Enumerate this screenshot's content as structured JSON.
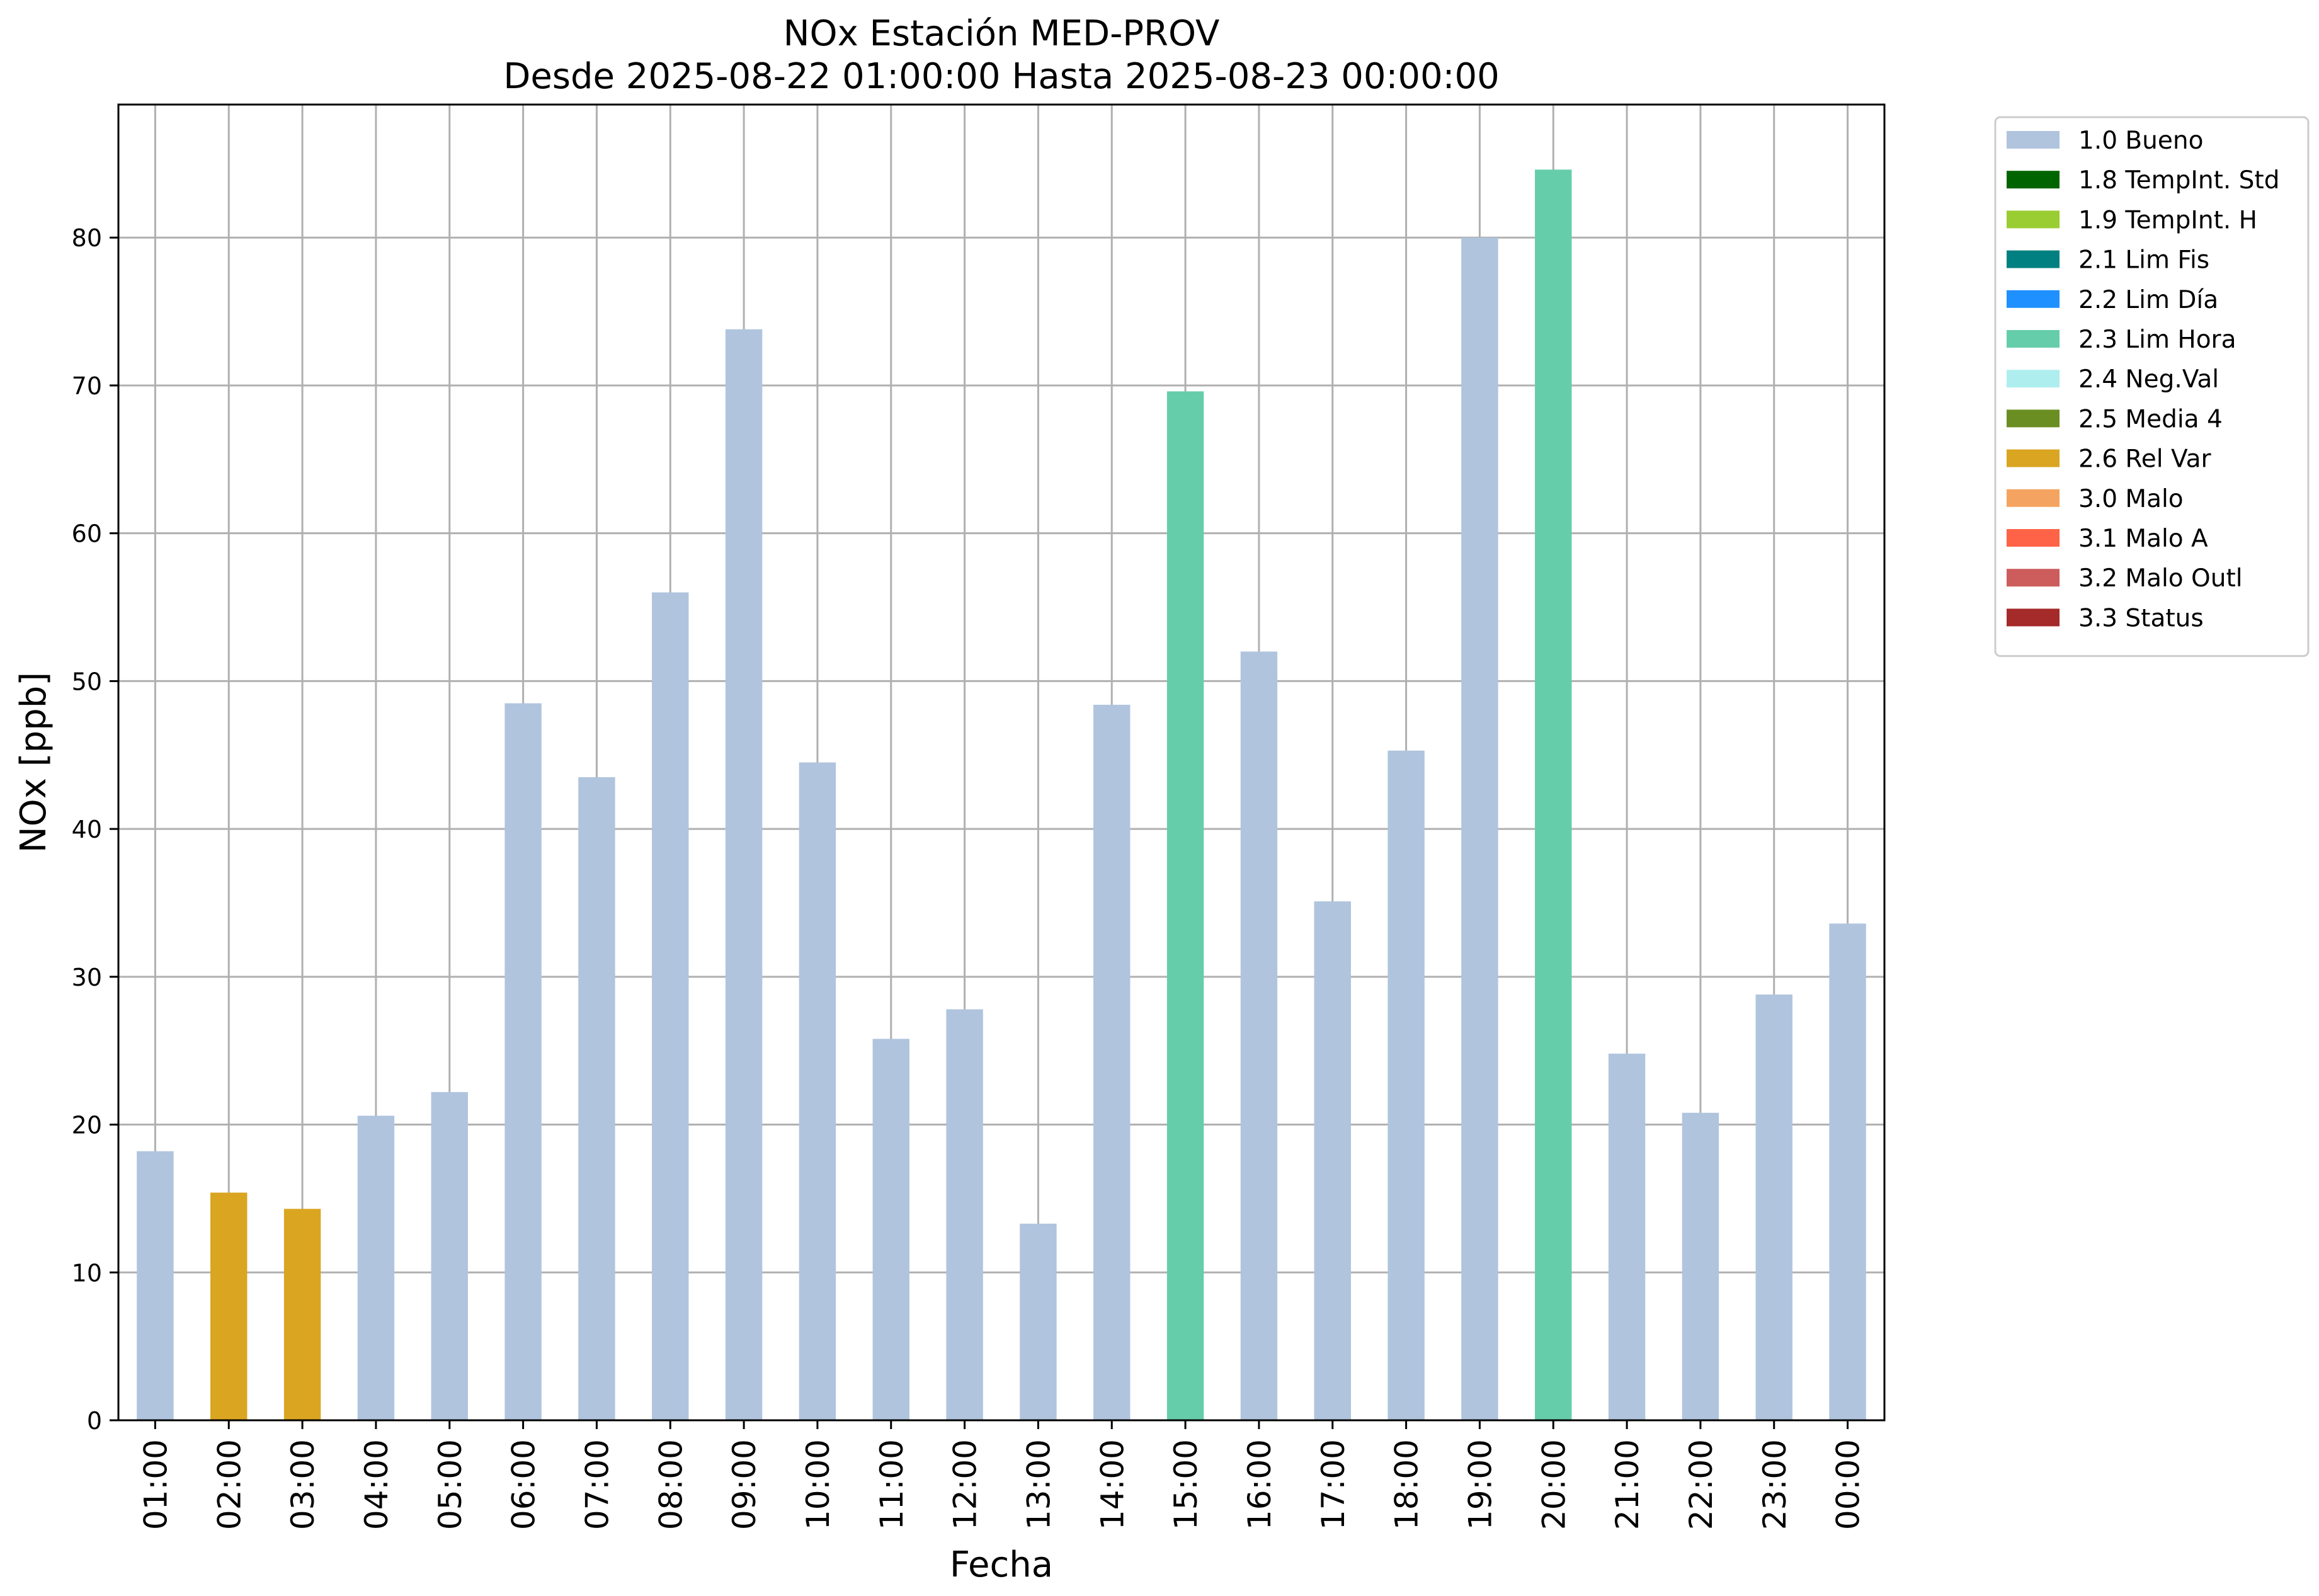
{
  "chart_data": {
    "type": "bar",
    "title": "NOx Estación MED-PROV",
    "subtitle": "Desde 2025-08-22 01:00:00 Hasta 2025-08-23 00:00:00",
    "xlabel": "Fecha",
    "ylabel": "NOx [ppb]",
    "ylim": [
      0,
      89
    ],
    "yticks": [
      0,
      10,
      20,
      30,
      40,
      50,
      60,
      70,
      80
    ],
    "grid": true,
    "legend_position": "outside-top-right",
    "categories": [
      "01:00",
      "02:00",
      "03:00",
      "04:00",
      "05:00",
      "06:00",
      "07:00",
      "08:00",
      "09:00",
      "10:00",
      "11:00",
      "12:00",
      "13:00",
      "14:00",
      "15:00",
      "16:00",
      "17:00",
      "18:00",
      "19:00",
      "20:00",
      "21:00",
      "22:00",
      "23:00",
      "00:00"
    ],
    "values": [
      18.2,
      15.4,
      14.3,
      20.6,
      22.2,
      48.5,
      43.5,
      56.0,
      73.8,
      44.5,
      25.8,
      27.8,
      13.3,
      48.4,
      69.6,
      52.0,
      35.1,
      45.3,
      80.0,
      84.6,
      24.8,
      20.8,
      28.8,
      33.6
    ],
    "flags": [
      "1.0 Bueno",
      "2.6 Rel Var",
      "2.6 Rel Var",
      "1.0 Bueno",
      "1.0 Bueno",
      "1.0 Bueno",
      "1.0 Bueno",
      "1.0 Bueno",
      "1.0 Bueno",
      "1.0 Bueno",
      "1.0 Bueno",
      "1.0 Bueno",
      "1.0 Bueno",
      "1.0 Bueno",
      "2.3 Lim Hora",
      "1.0 Bueno",
      "1.0 Bueno",
      "1.0 Bueno",
      "1.0 Bueno",
      "2.3 Lim Hora",
      "1.0 Bueno",
      "1.0 Bueno",
      "1.0 Bueno",
      "1.0 Bueno"
    ],
    "legend": [
      {
        "label": "1.0 Bueno",
        "color": "#b0c4de"
      },
      {
        "label": "1.8 TempInt. Std",
        "color": "#006400"
      },
      {
        "label": "1.9 TempInt. H",
        "color": "#9acd32"
      },
      {
        "label": "2.1 Lim Fis",
        "color": "#008080"
      },
      {
        "label": "2.2 Lim Día",
        "color": "#1e90ff"
      },
      {
        "label": "2.3 Lim Hora",
        "color": "#66cdaa"
      },
      {
        "label": "2.4 Neg.Val",
        "color": "#afeeee"
      },
      {
        "label": "2.5 Media 4",
        "color": "#6b8e23"
      },
      {
        "label": "2.6 Rel Var",
        "color": "#daa520"
      },
      {
        "label": "3.0 Malo",
        "color": "#f4a460"
      },
      {
        "label": "3.1 Malo A",
        "color": "#ff6347"
      },
      {
        "label": "3.2 Malo Outl",
        "color": "#cd5c5c"
      },
      {
        "label": "3.3 Status",
        "color": "#a52a2a"
      }
    ]
  }
}
